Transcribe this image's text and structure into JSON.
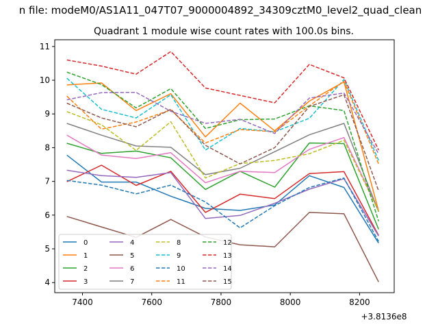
{
  "figure": {
    "suptitle": "n file: modeM0/AS1A11_047T07_9000004892_34309cztM0_level2_quad_clean"
  },
  "chart_data": {
    "type": "line",
    "title": "Quadrant 1 module wise count rates with 100.0s bins.",
    "xlabel": "",
    "ylabel": "",
    "x_offset_label": "+3.8136e8",
    "x": [
      7355,
      7455,
      7555,
      7655,
      7755,
      7855,
      7955,
      8055,
      8155,
      8255
    ],
    "xlim": [
      7320,
      8300
    ],
    "ylim": [
      3.7,
      11.2
    ],
    "x_ticks": [
      7400,
      7600,
      7800,
      8000,
      8200
    ],
    "y_ticks": [
      4,
      5,
      6,
      7,
      8,
      9,
      10,
      11
    ],
    "legend": {
      "placement": "lower-left",
      "columns": 4
    },
    "series": [
      {
        "name": "0",
        "color": "#1f77b4",
        "dash": "solid",
        "values": [
          7.78,
          6.98,
          6.98,
          6.56,
          6.2,
          6.14,
          6.3,
          7.17,
          6.82,
          5.17
        ]
      },
      {
        "name": "1",
        "color": "#ff7f0e",
        "dash": "solid",
        "values": [
          9.86,
          9.92,
          9.1,
          9.6,
          8.32,
          9.32,
          8.5,
          9.38,
          9.95,
          6.13
        ]
      },
      {
        "name": "2",
        "color": "#2ca02c",
        "dash": "solid",
        "values": [
          8.13,
          7.83,
          7.9,
          7.7,
          6.76,
          7.3,
          6.83,
          8.14,
          8.12,
          5.58
        ]
      },
      {
        "name": "3",
        "color": "#d62728",
        "dash": "solid",
        "values": [
          6.99,
          7.48,
          6.88,
          7.3,
          6.08,
          6.62,
          6.49,
          7.23,
          7.29,
          5.4
        ]
      },
      {
        "name": "4",
        "color": "#9467bd",
        "dash": "solid",
        "values": [
          7.33,
          7.17,
          7.12,
          7.26,
          5.9,
          5.99,
          6.35,
          6.77,
          7.08,
          5.38
        ]
      },
      {
        "name": "5",
        "color": "#8c564b",
        "dash": "solid",
        "values": [
          5.96,
          5.65,
          5.34,
          5.87,
          5.35,
          5.12,
          5.06,
          6.08,
          6.04,
          4.02
        ]
      },
      {
        "name": "6",
        "color": "#e377c2",
        "dash": "solid",
        "values": [
          8.37,
          7.78,
          7.68,
          7.85,
          6.96,
          7.3,
          7.26,
          7.95,
          8.3,
          6.13
        ]
      },
      {
        "name": "7",
        "color": "#7f7f7f",
        "dash": "solid",
        "values": [
          8.72,
          8.37,
          8.05,
          8.01,
          7.2,
          7.39,
          7.88,
          8.38,
          8.72,
          6.1
        ]
      },
      {
        "name": "8",
        "color": "#bcbd22",
        "dash": "dashed",
        "values": [
          9.07,
          8.68,
          7.92,
          8.77,
          7.1,
          7.53,
          7.62,
          7.82,
          8.22,
          6.12
        ]
      },
      {
        "name": "9",
        "color": "#17becf",
        "dash": "dashed",
        "values": [
          10.06,
          9.14,
          8.88,
          9.57,
          7.93,
          8.57,
          8.47,
          8.87,
          10.02,
          7.62
        ]
      },
      {
        "name": "10",
        "color": "#1f77b4",
        "dash": "dashed",
        "values": [
          7.03,
          6.89,
          6.63,
          6.89,
          6.39,
          5.62,
          6.28,
          6.82,
          7.1,
          5.22
        ]
      },
      {
        "name": "11",
        "color": "#ff7f0e",
        "dash": "dashed",
        "values": [
          9.53,
          8.55,
          8.76,
          9.12,
          8.14,
          8.54,
          8.47,
          9.24,
          9.97,
          7.52
        ]
      },
      {
        "name": "12",
        "color": "#2ca02c",
        "dash": "dashed",
        "values": [
          10.24,
          9.87,
          9.18,
          9.75,
          8.57,
          8.83,
          8.85,
          9.24,
          9.1,
          5.82
        ]
      },
      {
        "name": "13",
        "color": "#d62728",
        "dash": "dashed",
        "values": [
          10.6,
          10.42,
          10.18,
          10.85,
          9.77,
          9.55,
          9.33,
          10.47,
          10.07,
          7.93
        ]
      },
      {
        "name": "14",
        "color": "#9467bd",
        "dash": "dashed",
        "values": [
          9.42,
          9.63,
          9.64,
          9.08,
          8.72,
          8.84,
          8.42,
          9.47,
          9.62,
          7.82
        ]
      },
      {
        "name": "15",
        "color": "#8c564b",
        "dash": "dashed",
        "values": [
          9.32,
          8.88,
          8.62,
          9.14,
          8.07,
          7.52,
          8.0,
          9.22,
          9.57,
          6.72
        ]
      }
    ]
  }
}
